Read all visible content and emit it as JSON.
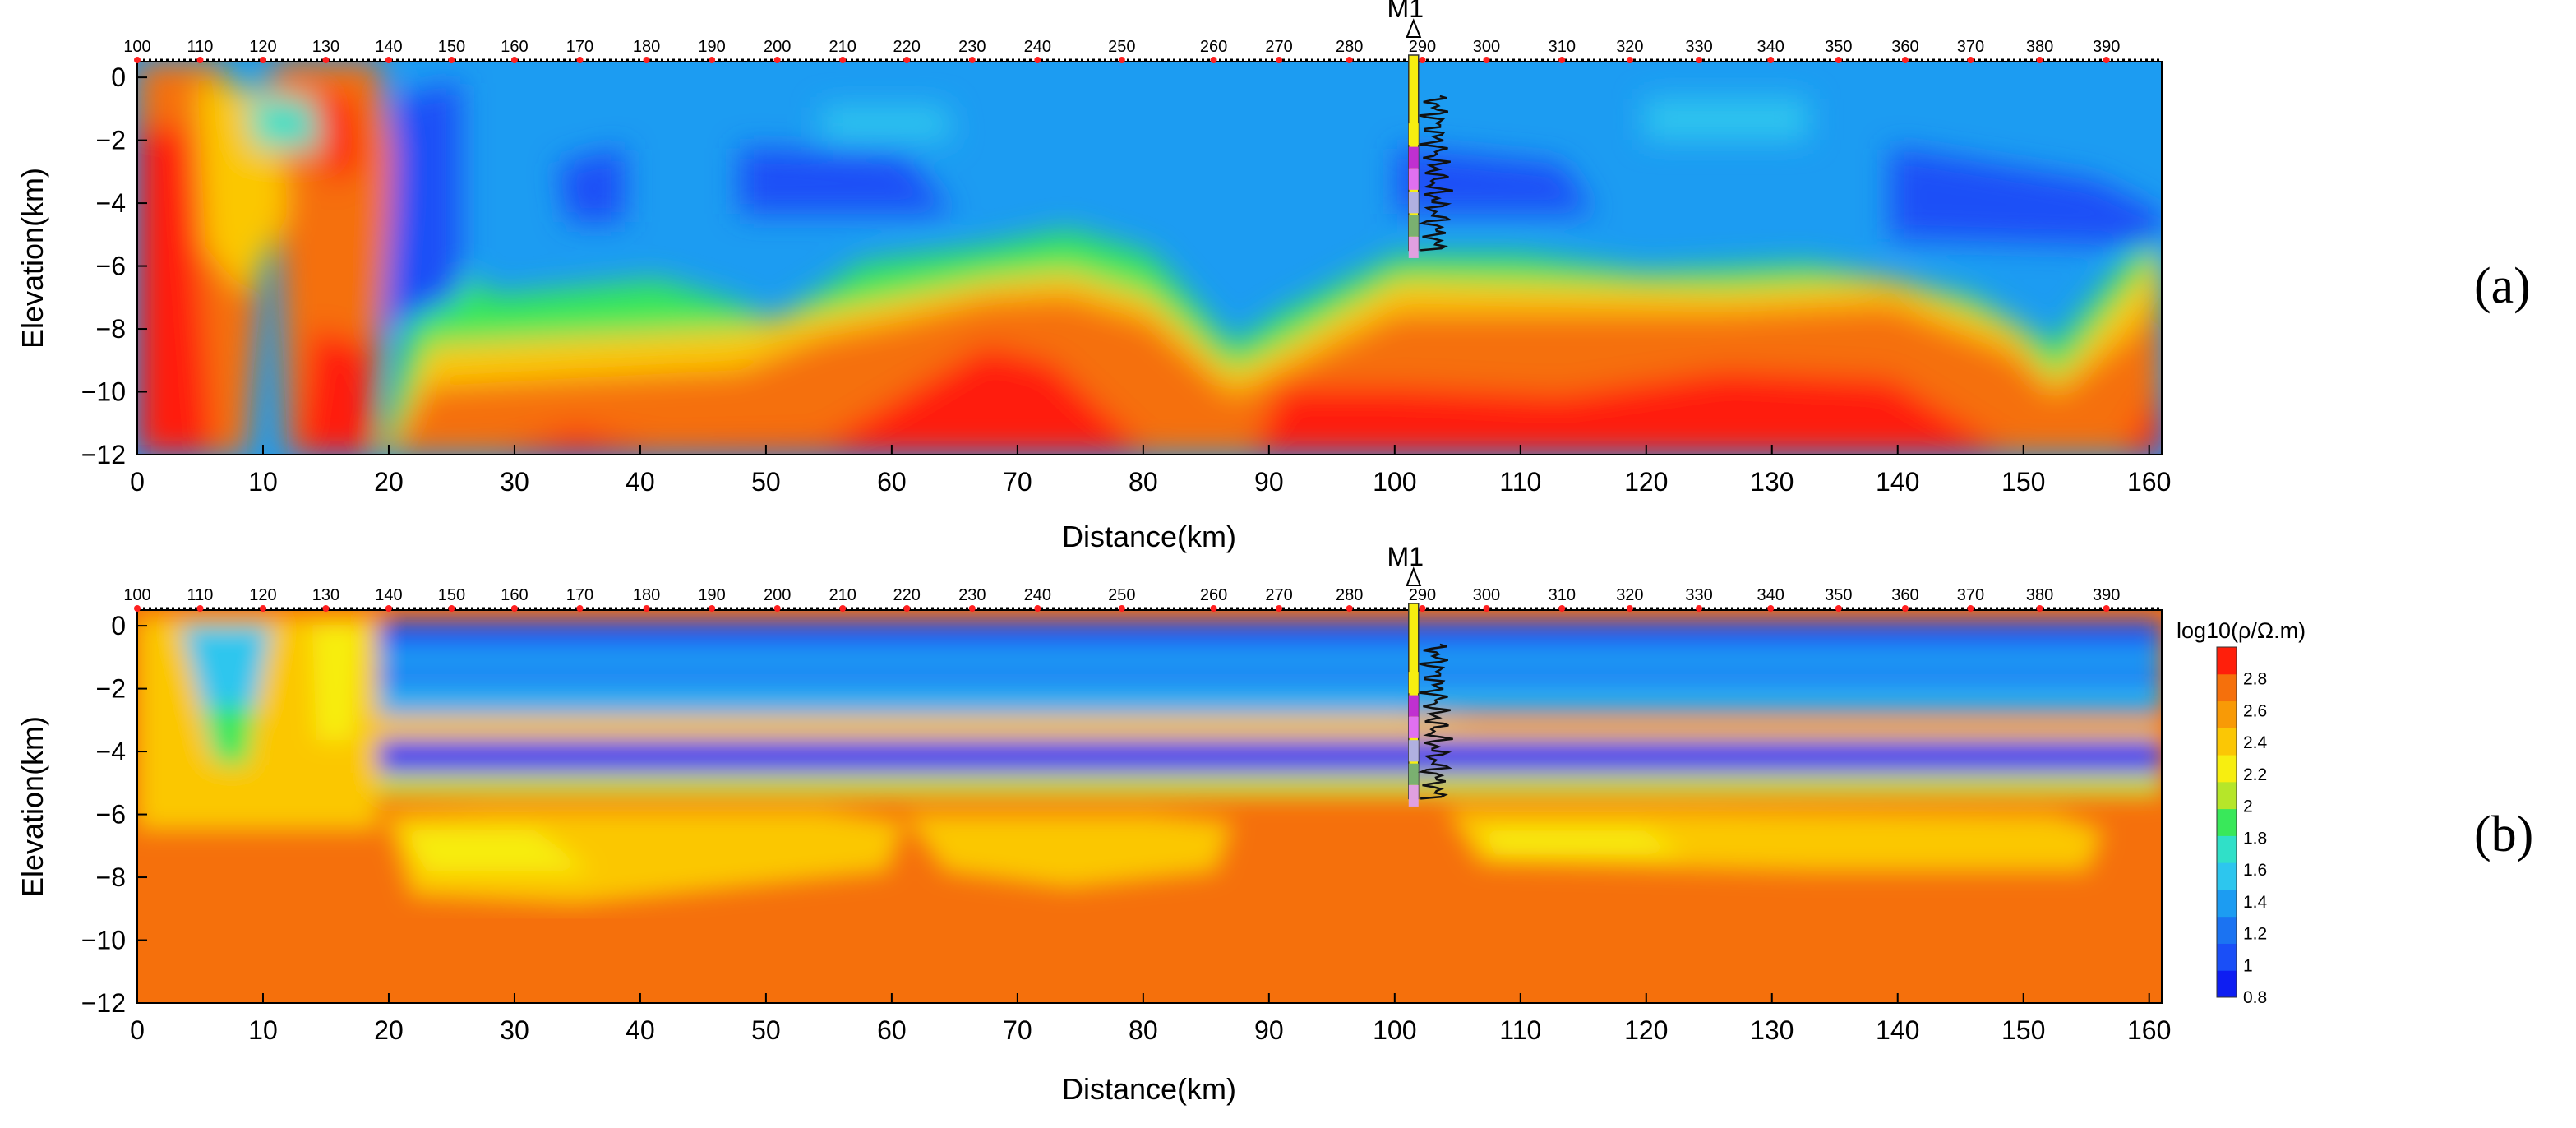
{
  "chart_data": [
    {
      "id": "a",
      "type": "heatmap",
      "panel_label": "(a)",
      "xlabel": "Distance(km)",
      "ylabel": "Elevation(km)",
      "xlim": [
        0,
        161
      ],
      "ylim": [
        -12,
        0.5
      ],
      "x_ticks": [
        0,
        10,
        20,
        30,
        40,
        50,
        60,
        70,
        80,
        90,
        100,
        110,
        120,
        130,
        140,
        150,
        160
      ],
      "y_ticks": [
        0,
        -2,
        -4,
        -6,
        -8,
        -10,
        -12
      ],
      "x_tick_labels": [
        "0",
        "10",
        "20",
        "30",
        "40",
        "50",
        "60",
        "70",
        "80",
        "90",
        "100",
        "110",
        "120",
        "130",
        "140",
        "150",
        "160"
      ],
      "y_tick_labels": [
        "0",
        "−2",
        "−4",
        "−6",
        "−8",
        "−10",
        "−12"
      ],
      "stations": [
        {
          "label": "100",
          "km": 0
        },
        {
          "label": "110",
          "km": 5
        },
        {
          "label": "120",
          "km": 10
        },
        {
          "label": "130",
          "km": 15
        },
        {
          "label": "140",
          "km": 20
        },
        {
          "label": "150",
          "km": 25
        },
        {
          "label": "160",
          "km": 30
        },
        {
          "label": "170",
          "km": 35.2
        },
        {
          "label": "180",
          "km": 40.5
        },
        {
          "label": "190",
          "km": 45.7
        },
        {
          "label": "200",
          "km": 50.9
        },
        {
          "label": "210",
          "km": 56.1
        },
        {
          "label": "220",
          "km": 61.2
        },
        {
          "label": "230",
          "km": 66.4
        },
        {
          "label": "240",
          "km": 71.6
        },
        {
          "label": "250",
          "km": 78.3
        },
        {
          "label": "260",
          "km": 85.6
        },
        {
          "label": "270",
          "km": 90.8
        },
        {
          "label": "280",
          "km": 96.4
        },
        {
          "label": "290",
          "km": 102.2
        },
        {
          "label": "300",
          "km": 107.3
        },
        {
          "label": "310",
          "km": 113.3
        },
        {
          "label": "320",
          "km": 118.7
        },
        {
          "label": "330",
          "km": 124.2
        },
        {
          "label": "340",
          "km": 129.9
        },
        {
          "label": "350",
          "km": 135.3
        },
        {
          "label": "360",
          "km": 140.6
        },
        {
          "label": "370",
          "km": 145.8
        },
        {
          "label": "380",
          "km": 151.3
        },
        {
          "label": "390",
          "km": 156.6
        }
      ],
      "well": {
        "label": "M1",
        "km": 101.5,
        "depth_km": -5.5
      },
      "model": "fig-a"
    },
    {
      "id": "b",
      "type": "heatmap",
      "panel_label": "(b)",
      "xlabel": "Distance(km)",
      "ylabel": "Elevation(km)",
      "xlim": [
        0,
        161
      ],
      "ylim": [
        -12,
        0.5
      ],
      "x_ticks": [
        0,
        10,
        20,
        30,
        40,
        50,
        60,
        70,
        80,
        90,
        100,
        110,
        120,
        130,
        140,
        150,
        160
      ],
      "y_ticks": [
        0,
        -2,
        -4,
        -6,
        -8,
        -10,
        -12
      ],
      "x_tick_labels": [
        "0",
        "10",
        "20",
        "30",
        "40",
        "50",
        "60",
        "70",
        "80",
        "90",
        "100",
        "110",
        "120",
        "130",
        "140",
        "150",
        "160"
      ],
      "y_tick_labels": [
        "0",
        "−2",
        "−4",
        "−6",
        "−8",
        "−10",
        "−12"
      ],
      "stations": [
        {
          "label": "100",
          "km": 0
        },
        {
          "label": "110",
          "km": 5
        },
        {
          "label": "120",
          "km": 10
        },
        {
          "label": "130",
          "km": 15
        },
        {
          "label": "140",
          "km": 20
        },
        {
          "label": "150",
          "km": 25
        },
        {
          "label": "160",
          "km": 30
        },
        {
          "label": "170",
          "km": 35.2
        },
        {
          "label": "180",
          "km": 40.5
        },
        {
          "label": "190",
          "km": 45.7
        },
        {
          "label": "200",
          "km": 50.9
        },
        {
          "label": "210",
          "km": 56.1
        },
        {
          "label": "220",
          "km": 61.2
        },
        {
          "label": "230",
          "km": 66.4
        },
        {
          "label": "240",
          "km": 71.6
        },
        {
          "label": "250",
          "km": 78.3
        },
        {
          "label": "260",
          "km": 85.6
        },
        {
          "label": "270",
          "km": 90.8
        },
        {
          "label": "280",
          "km": 96.4
        },
        {
          "label": "290",
          "km": 102.2
        },
        {
          "label": "300",
          "km": 107.3
        },
        {
          "label": "310",
          "km": 113.3
        },
        {
          "label": "320",
          "km": 118.7
        },
        {
          "label": "330",
          "km": 124.2
        },
        {
          "label": "340",
          "km": 129.9
        },
        {
          "label": "350",
          "km": 135.3
        },
        {
          "label": "360",
          "km": 140.6
        },
        {
          "label": "370",
          "km": 145.8
        },
        {
          "label": "380",
          "km": 151.3
        },
        {
          "label": "390",
          "km": 156.6
        }
      ],
      "well": {
        "label": "M1",
        "km": 101.5,
        "depth_km": -5.5
      },
      "model": "fig-b"
    }
  ],
  "colorbar": {
    "title": "log10(ρ/Ω.m)",
    "min": 0.8,
    "max": 3.0,
    "ticks": [
      2.8,
      2.6,
      2.4,
      2.2,
      2,
      1.8,
      1.6,
      1.4,
      1.2,
      1,
      0.8
    ],
    "tick_labels": [
      "2.8",
      "2.6",
      "2.4",
      "2.2",
      "2",
      "1.8",
      "1.6",
      "1.4",
      "1.2",
      "1",
      "0.8"
    ],
    "colors": [
      "#0e1ef2",
      "#1a4ff7",
      "#1b73f2",
      "#1c9cf2",
      "#2dc6ee",
      "#30e0c8",
      "#39e85a",
      "#b6e629",
      "#f7ee10",
      "#fbc705",
      "#f89a06",
      "#f5700c",
      "#ff1f0b"
    ]
  }
}
